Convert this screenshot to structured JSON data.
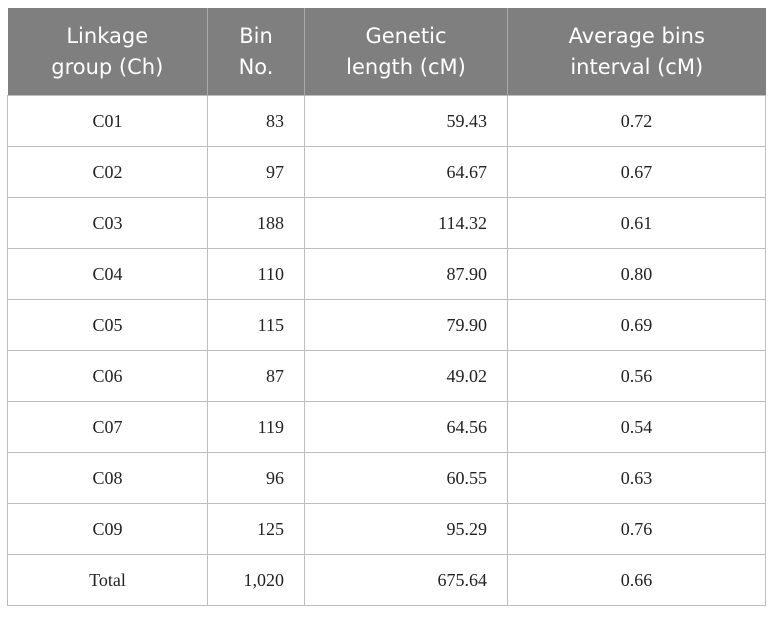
{
  "table": {
    "headers": [
      {
        "line1": "Linkage",
        "line2": "group (Ch)"
      },
      {
        "line1": "Bin",
        "line2": "No."
      },
      {
        "line1": "Genetic",
        "line2": "length (cM)"
      },
      {
        "line1": "Average bins",
        "line2": "interval (cM)"
      }
    ],
    "rows": [
      [
        "C01",
        "83",
        "59.43",
        "0.72"
      ],
      [
        "C02",
        "97",
        "64.67",
        "0.67"
      ],
      [
        "C03",
        "188",
        "114.32",
        "0.61"
      ],
      [
        "C04",
        "110",
        "87.90",
        "0.80"
      ],
      [
        "C05",
        "115",
        "79.90",
        "0.69"
      ],
      [
        "C06",
        "87",
        "49.02",
        "0.56"
      ],
      [
        "C07",
        "119",
        "64.56",
        "0.54"
      ],
      [
        "C08",
        "96",
        "60.55",
        "0.63"
      ],
      [
        "C09",
        "125",
        "95.29",
        "0.76"
      ],
      [
        "Total",
        "1,020",
        "675.64",
        "0.66"
      ]
    ]
  },
  "colors": {
    "header_bg": "#7f7f7f",
    "header_text": "#ffffff",
    "border": "#bdbdbd"
  }
}
